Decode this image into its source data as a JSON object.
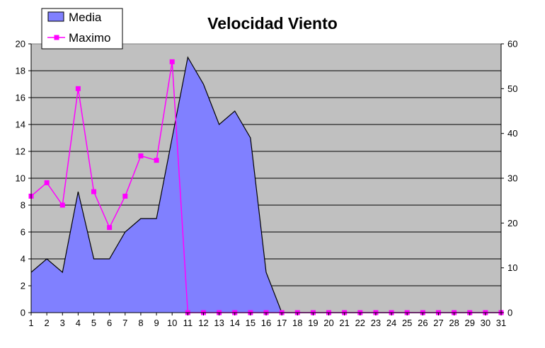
{
  "chart_data": {
    "type": "area",
    "title": "Velocidad Viento",
    "categories": [
      "1",
      "2",
      "3",
      "4",
      "5",
      "6",
      "7",
      "8",
      "9",
      "10",
      "11",
      "12",
      "13",
      "14",
      "15",
      "16",
      "17",
      "18",
      "19",
      "20",
      "21",
      "22",
      "23",
      "24",
      "25",
      "26",
      "27",
      "28",
      "29",
      "30",
      "31"
    ],
    "y_left": {
      "ylim": [
        0,
        20
      ],
      "ticks": [
        "0",
        "2",
        "4",
        "6",
        "8",
        "10",
        "12",
        "14",
        "16",
        "18",
        "20"
      ]
    },
    "y_right": {
      "ylim": [
        0,
        60
      ],
      "ticks": [
        "0",
        "10",
        "20",
        "30",
        "40",
        "50",
        "60"
      ]
    },
    "series": [
      {
        "name": "Media",
        "type": "area",
        "axis": "left",
        "values": [
          3,
          4,
          3,
          9,
          4,
          4,
          6,
          7,
          7,
          13,
          19,
          17,
          14,
          15,
          13,
          3,
          0,
          0,
          0,
          0,
          0,
          0,
          0,
          0,
          0,
          0,
          0,
          0,
          0,
          0,
          0
        ]
      },
      {
        "name": "Maximo",
        "type": "line",
        "axis": "right",
        "values": [
          26,
          29,
          24,
          50,
          27,
          19,
          26,
          35,
          34,
          56,
          0,
          0,
          0,
          0,
          0,
          0,
          0,
          0,
          0,
          0,
          0,
          0,
          0,
          0,
          0,
          0,
          0,
          0,
          0,
          0,
          0
        ]
      }
    ],
    "legend_position": "top-left",
    "grid": true,
    "colors": {
      "plot_background": "#c0c0c0",
      "area_fill": "#8080ff",
      "area_stroke": "#000000",
      "line": "#ff00ff",
      "gridline": "#000000"
    }
  }
}
